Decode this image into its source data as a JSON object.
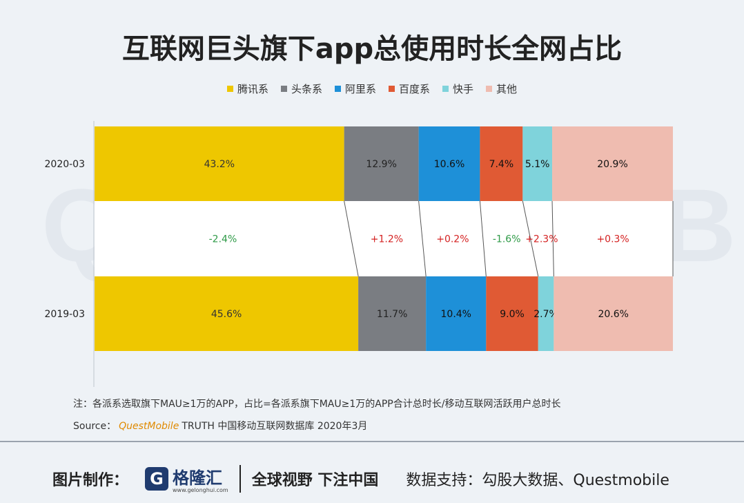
{
  "title": "互联网巨头旗下app总使用时长全网占比",
  "watermark": "QUESTMOBILE",
  "chart_data": {
    "type": "bar",
    "orientation": "horizontal",
    "stacked": "100%",
    "categories": [
      "2020-03",
      "2019-03"
    ],
    "series": [
      {
        "name": "腾讯系",
        "color": "#eec700",
        "label_color": "#333333",
        "values": [
          43.2,
          45.6
        ],
        "labels": [
          "43.2%",
          "45.6%"
        ]
      },
      {
        "name": "头条系",
        "color": "#7a7d82",
        "label_color": "#222222",
        "values": [
          12.9,
          11.7
        ],
        "labels": [
          "12.9%",
          "11.7%"
        ]
      },
      {
        "name": "阿里系",
        "color": "#1e90d8",
        "label_color": "#111111",
        "values": [
          10.6,
          10.4
        ],
        "labels": [
          "10.6%",
          "10.4%"
        ]
      },
      {
        "name": "百度系",
        "color": "#e05a34",
        "label_color": "#111111",
        "values": [
          7.4,
          9.0
        ],
        "labels": [
          "7.4%",
          "9.0%"
        ]
      },
      {
        "name": "快手",
        "color": "#7fd3db",
        "label_color": "#111111",
        "values": [
          5.1,
          2.7
        ],
        "labels": [
          "5.1%",
          "2.7%"
        ]
      },
      {
        "name": "其他",
        "color": "#efbcb0",
        "label_color": "#111111",
        "values": [
          20.9,
          20.6
        ],
        "labels": [
          "20.9%",
          "20.6%"
        ]
      }
    ],
    "changes": [
      {
        "label": "-2.4%",
        "color": "#2e9a47"
      },
      {
        "label": "+1.2%",
        "color": "#d42020"
      },
      {
        "label": "+0.2%",
        "color": "#d42020"
      },
      {
        "label": "-1.6%",
        "color": "#2e9a47"
      },
      {
        "label": "+2.3%",
        "color": "#d42020"
      },
      {
        "label": "+0.3%",
        "color": "#d42020"
      }
    ],
    "legend_position": "top-center",
    "grid": false
  },
  "note": "注：各派系选取旗下MAU≥1万的APP，占比=各派系旗下MAU≥1万的APP合计总时长/移动互联网活跃用户总时长",
  "source": {
    "prefix": "Source：",
    "brand": "QuestMobile",
    "text": "TRUTH 中国移动互联网数据库 2020年3月"
  },
  "footer": {
    "made_by": "图片制作：",
    "logo_glyph": "G",
    "logo_text": "格隆汇",
    "logo_url": "www.gelonghui.com",
    "slogan": "全球视野 下注中国",
    "support": "数据支持：勾股大数据、Questmobile"
  }
}
